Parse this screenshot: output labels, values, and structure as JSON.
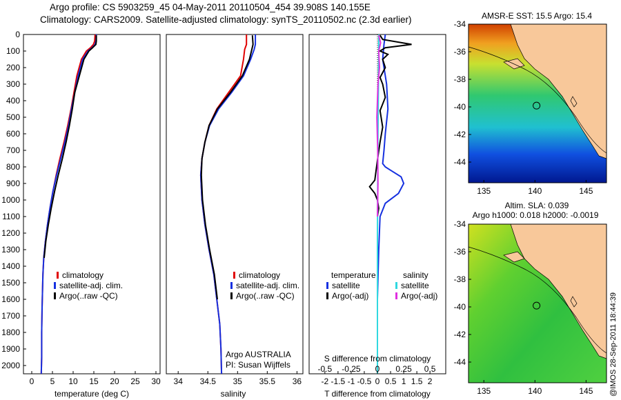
{
  "header": {
    "title_line1": "Argo profile: CS 5903259_45 04-May-2011 20110504_454 39.908S 140.155E",
    "title_line2": "Climatology: CARS2009. Satellite-adjusted climatology: synTS_20110502.nc (2.3d earlier)"
  },
  "watermark": "@IMOS 28-Sep-2011 18:44:39",
  "colors": {
    "climatology": "#e00000",
    "satellite": "#1530e0",
    "argo": "#000000",
    "sal_satellite": "#30d8e0",
    "sal_argo": "#e030e0",
    "land": "#f8c89a"
  },
  "chart_data": [
    {
      "type": "line",
      "id": "temperature",
      "xlabel": "temperature (deg C)",
      "ylabel": "",
      "xlim": [
        -2,
        31
      ],
      "ylim": [
        2050,
        0
      ],
      "xticks": [
        0,
        5,
        10,
        15,
        20,
        25,
        30
      ],
      "yticks": [
        0,
        100,
        200,
        300,
        400,
        500,
        600,
        700,
        800,
        900,
        1000,
        1100,
        1200,
        1300,
        1400,
        1500,
        1600,
        1700,
        1800,
        1900,
        2000
      ],
      "legend": [
        "climatology",
        "satellite-adj. clim.",
        "Argo(..raw -QC)"
      ],
      "series": [
        {
          "name": "climatology",
          "color": "#e00000",
          "x": [
            15.3,
            15.2,
            14.9,
            14.2,
            13.2,
            12.0,
            10.9,
            10.2,
            9.5,
            8.7,
            7.8,
            6.8,
            5.9,
            5.1,
            4.4,
            3.8,
            3.3,
            2.9,
            2.7,
            2.6,
            2.5,
            2.4,
            2.4,
            2.3
          ],
          "y": [
            0,
            40,
            60,
            80,
            100,
            150,
            250,
            350,
            450,
            550,
            650,
            750,
            850,
            950,
            1050,
            1150,
            1250,
            1350,
            1450,
            1550,
            1650,
            1800,
            1950,
            2050
          ]
        },
        {
          "name": "satellite-adj. clim.",
          "color": "#1530e0",
          "x": [
            15.6,
            15.5,
            15.3,
            14.6,
            13.6,
            12.3,
            11.2,
            10.4,
            9.6,
            8.9,
            8.0,
            7.0,
            6.0,
            5.1,
            4.4,
            3.8,
            3.3,
            2.9,
            2.7,
            2.6,
            2.5,
            2.4,
            2.4,
            2.3
          ],
          "y": [
            0,
            40,
            60,
            80,
            100,
            150,
            250,
            350,
            450,
            550,
            650,
            750,
            850,
            950,
            1050,
            1150,
            1250,
            1350,
            1450,
            1550,
            1650,
            1800,
            1950,
            2050
          ]
        },
        {
          "name": "Argo(..raw -QC)",
          "color": "#000000",
          "x": [
            15.6,
            15.6,
            15.5,
            14.7,
            13.8,
            12.6,
            11.5,
            10.4,
            9.8,
            9.1,
            8.3,
            7.4,
            6.4,
            5.5,
            4.7,
            4.0,
            3.4,
            3.0
          ],
          "y": [
            5,
            40,
            60,
            80,
            100,
            150,
            250,
            350,
            450,
            550,
            650,
            750,
            850,
            950,
            1050,
            1150,
            1250,
            1350
          ]
        }
      ]
    },
    {
      "type": "line",
      "id": "salinity",
      "xlabel": "salinity",
      "ylabel": "",
      "xlim": [
        33.8,
        36.1
      ],
      "ylim": [
        2050,
        0
      ],
      "xticks": [
        34,
        34.5,
        35,
        35.5,
        36
      ],
      "legend": [
        "climatology",
        "satellite-adj. clim.",
        "Argo(..raw -QC)"
      ],
      "annotation": [
        "Argo AUSTRALIA",
        "PI: Susan Wijffels"
      ],
      "series": [
        {
          "name": "climatology",
          "color": "#e00000",
          "x": [
            35.15,
            35.15,
            35.12,
            35.1,
            35.05,
            34.85,
            34.65,
            34.52,
            34.45,
            34.4,
            34.38,
            34.4,
            34.45,
            34.52,
            34.6,
            34.65,
            34.7,
            34.72,
            34.73
          ],
          "y": [
            0,
            60,
            90,
            150,
            250,
            350,
            450,
            550,
            650,
            750,
            850,
            1000,
            1150,
            1300,
            1450,
            1600,
            1750,
            1900,
            2050
          ]
        },
        {
          "name": "satellite-adj. clim.",
          "color": "#1530e0",
          "x": [
            35.3,
            35.3,
            35.28,
            35.22,
            35.1,
            34.9,
            34.68,
            34.53,
            34.45,
            34.4,
            34.38,
            34.4,
            34.45,
            34.52,
            34.6,
            34.65,
            34.7,
            34.72,
            34.73
          ],
          "y": [
            0,
            60,
            90,
            150,
            250,
            350,
            450,
            550,
            650,
            750,
            850,
            1000,
            1150,
            1300,
            1450,
            1600,
            1750,
            1900,
            2050
          ]
        },
        {
          "name": "Argo(..raw -QC)",
          "color": "#000000",
          "x": [
            35.25,
            35.26,
            35.24,
            35.2,
            35.08,
            34.88,
            34.66,
            34.52,
            34.45,
            34.4,
            34.39,
            34.41,
            34.46,
            34.53,
            34.61,
            34.66
          ],
          "y": [
            5,
            60,
            90,
            150,
            250,
            350,
            450,
            550,
            650,
            750,
            850,
            1000,
            1150,
            1300,
            1450,
            1600
          ]
        }
      ]
    },
    {
      "type": "line",
      "id": "difference",
      "xlabel": "T difference from climatology",
      "xlabel_top": "S difference from climatology",
      "xlim": [
        -2.6,
        2.6
      ],
      "ylim": [
        2050,
        0
      ],
      "xticks": [
        -2,
        -1.5,
        -1,
        -0.5,
        0,
        0.5,
        1,
        1.5,
        2
      ],
      "xticklabels": [
        "-2",
        "-1.5",
        "-1",
        "-0.5",
        "0",
        "0.5",
        "1",
        "1.5",
        "2"
      ],
      "xticks_s": [
        -0.5,
        -0.25,
        0,
        0.25,
        0.5
      ],
      "xticklabels_s": [
        "-0.5",
        "-0.25",
        "0",
        "0.25",
        "0.5"
      ],
      "legend_temperature": [
        "temperature",
        "satellite",
        "Argo(-adj)"
      ],
      "legend_salinity": [
        "salinity",
        "satellite",
        "Argo(-adj)"
      ],
      "series": [
        {
          "name": "temperature satellite",
          "color": "#1530e0",
          "x": [
            0.3,
            0.25,
            0.2,
            0.35,
            0.4,
            0.3,
            0.25,
            0.2,
            0.3,
            0.5,
            0.9,
            1.0,
            0.8,
            0.3,
            0.1,
            0.05,
            0.0,
            0.0
          ],
          "y": [
            0,
            60,
            150,
            300,
            450,
            600,
            700,
            780,
            800,
            820,
            860,
            900,
            960,
            1020,
            1100,
            1300,
            1600,
            2000
          ]
        },
        {
          "name": "temperature Argo(-adj)",
          "color": "#000000",
          "x": [
            0.1,
            0.2,
            1.3,
            0.3,
            0.1,
            0.4,
            0.2,
            0.3,
            0.1,
            0.2,
            0.3,
            0.1,
            0.2,
            0.1,
            0.0,
            -0.1,
            -0.3,
            -0.1,
            0.0,
            0.05,
            0.0
          ],
          "y": [
            5,
            30,
            60,
            80,
            100,
            120,
            150,
            200,
            260,
            300,
            380,
            460,
            560,
            650,
            760,
            880,
            920,
            960,
            1000,
            1050,
            1100
          ]
        },
        {
          "name": "salinity satellite",
          "color": "#30d8e0",
          "x": [
            0.05,
            0.05,
            0.04,
            0.02,
            0.01,
            0.0,
            0.0,
            0.0
          ],
          "y": [
            0,
            100,
            300,
            600,
            900,
            1200,
            1600,
            2050
          ]
        },
        {
          "name": "salinity Argo(-adj)",
          "color": "#e030e0",
          "x": [
            0.05,
            0.12,
            0.05,
            0.08,
            0.02,
            -0.02,
            0.01,
            0.02,
            0.0
          ],
          "y": [
            5,
            50,
            100,
            200,
            300,
            500,
            700,
            900,
            1100
          ]
        }
      ]
    },
    {
      "type": "heatmap",
      "id": "map-sst",
      "title": "AMSR-E SST: 15.5 Argo: 15.4",
      "xlim": [
        133.5,
        147
      ],
      "ylim": [
        -45.5,
        -34
      ],
      "xticks": [
        135,
        140,
        145
      ],
      "yticks": [
        -34,
        -36,
        -38,
        -40,
        -42,
        -44
      ],
      "argo_position": [
        140.155,
        -39.908
      ]
    },
    {
      "type": "heatmap",
      "id": "map-sla",
      "title": "Altim. SLA: 0.039",
      "subtitle": "Argo h1000: 0.018 h2000: -0.0019",
      "xlim": [
        133.5,
        147
      ],
      "ylim": [
        -45.5,
        -34
      ],
      "xticks": [
        135,
        140,
        145
      ],
      "yticks": [
        -34,
        -36,
        -38,
        -40,
        -42,
        -44
      ],
      "argo_position": [
        140.155,
        -39.908
      ]
    }
  ]
}
